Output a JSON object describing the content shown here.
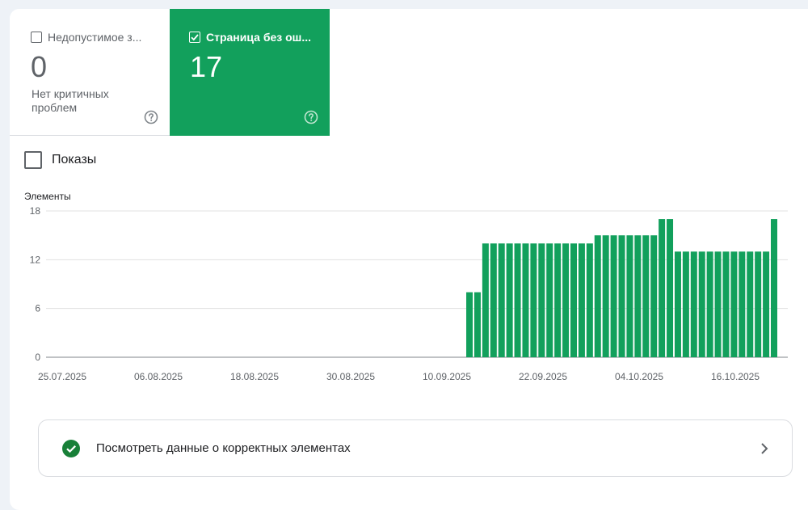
{
  "tiles": {
    "error": {
      "label": "Недопустимое з...",
      "value": "0",
      "subtitle": "Нет критичных проблем",
      "checked": false
    },
    "valid": {
      "label": "Страница без ош...",
      "value": "17",
      "checked": true,
      "color": "#12a05c"
    }
  },
  "impressions": {
    "label": "Показы",
    "checked": false
  },
  "chart_data": {
    "type": "bar",
    "ylabel": "Элементы",
    "ylim": [
      0,
      18
    ],
    "yticks": [
      "18",
      "12",
      "6",
      "0"
    ],
    "xtick_labels": [
      "25.07.2025",
      "06.08.2025",
      "18.08.2025",
      "30.08.2025",
      "10.09.2025",
      "22.09.2025",
      "04.10.2025",
      "16.10.2025"
    ],
    "bar_color": "#12a05c",
    "grid": true,
    "values": [
      8,
      8,
      14,
      14,
      14,
      14,
      14,
      14,
      14,
      14,
      14,
      14,
      14,
      14,
      14,
      14,
      15,
      15,
      15,
      15,
      15,
      15,
      15,
      15,
      17,
      17,
      13,
      13,
      13,
      13,
      13,
      13,
      13,
      13,
      13,
      13,
      13,
      13,
      17
    ]
  },
  "link": {
    "label": "Посмотреть данные о корректных элементах"
  },
  "icons": {
    "help": "help-circle-icon",
    "check": "check-circle-icon",
    "chevron": "chevron-right-icon"
  }
}
